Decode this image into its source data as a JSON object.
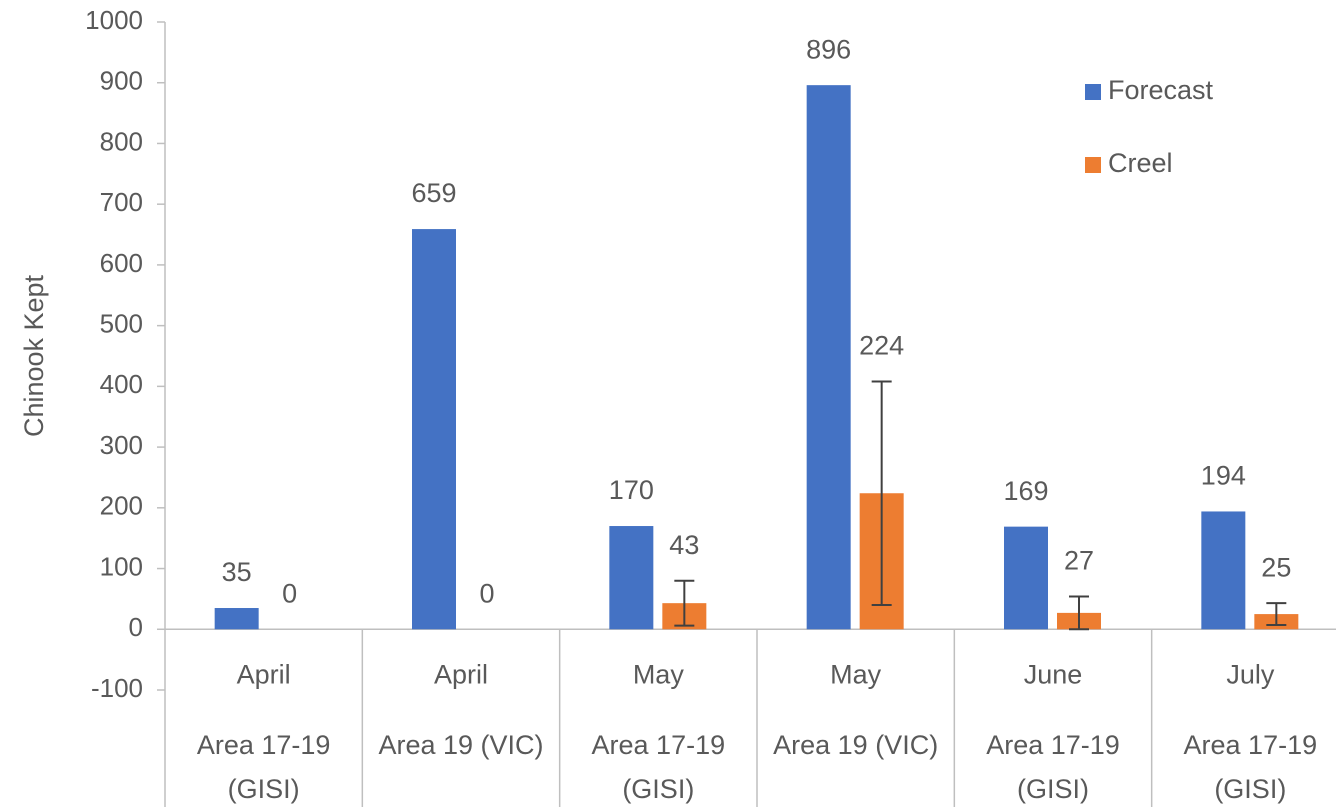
{
  "chart_data": {
    "type": "bar",
    "y_label": "Chinook Kept",
    "categories": [
      "April",
      "April",
      "May",
      "May",
      "June",
      "July"
    ],
    "groups": [
      "Area 17-19 (GISI)",
      "Area 19 (VIC)",
      "Area 17-19 (GISI)",
      "Area 19 (VIC)",
      "Area 17-19 (GISI)",
      "Area 17-19 (GISI)"
    ],
    "series": [
      {
        "name": "Forecast",
        "color": "#4472c4",
        "values": [
          35,
          659,
          170,
          896,
          169,
          194
        ]
      },
      {
        "name": "Creel",
        "color": "#ed7d31",
        "values": [
          0,
          0,
          43,
          224,
          27,
          25
        ],
        "errors": [
          null,
          null,
          37,
          184,
          27,
          18
        ]
      }
    ],
    "ylim": [
      -100,
      1000
    ],
    "yticks": [
      -100,
      0,
      100,
      200,
      300,
      400,
      500,
      600,
      700,
      800,
      900,
      1000
    ],
    "legend": "upper right"
  }
}
